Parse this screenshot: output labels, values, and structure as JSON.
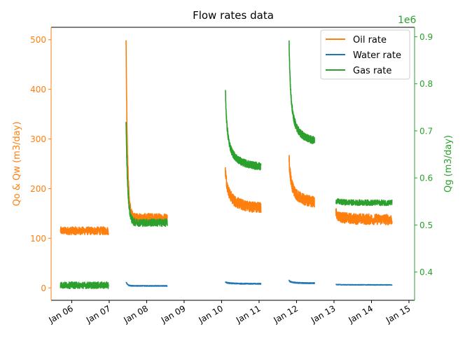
{
  "chart_data": {
    "type": "line",
    "title": "Flow rates data",
    "xlabel": "",
    "ylabel_left": "Qo & Qw (m3/day)",
    "ylabel_right": "Qg (m3/day)",
    "right_axis_offset": "1e6",
    "ylim_left": [
      -25,
      525
    ],
    "ylim_right": [
      0.34,
      0.92
    ],
    "xlim_days": [
      -0.55,
      9.15
    ],
    "x_ticks": [
      {
        "day": 0,
        "label": "Jan 06"
      },
      {
        "day": 1,
        "label": "Jan 07"
      },
      {
        "day": 2,
        "label": "Jan 08"
      },
      {
        "day": 3,
        "label": "Jan 09"
      },
      {
        "day": 4,
        "label": "Jan 10"
      },
      {
        "day": 5,
        "label": "Jan 11"
      },
      {
        "day": 6,
        "label": "Jan 12"
      },
      {
        "day": 7,
        "label": "Jan 13"
      },
      {
        "day": 8,
        "label": "Jan 14"
      },
      {
        "day": 9,
        "label": "Jan 15"
      }
    ],
    "y_ticks_left": [
      0,
      100,
      200,
      300,
      400,
      500
    ],
    "y_ticks_right": [
      0.4,
      0.5,
      0.6,
      0.7,
      0.8,
      0.9
    ],
    "colors": {
      "oil": "#ff7f0e",
      "water": "#1f77b4",
      "gas": "#2ca02c"
    },
    "legend": {
      "position": "top-right",
      "entries": [
        "Oil rate",
        "Water rate",
        "Gas rate"
      ]
    },
    "series": [
      {
        "name": "Oil rate",
        "axis": "left",
        "color": "#ff7f0e",
        "segments": [
          {
            "start": -0.3,
            "end": 0.98,
            "peak": 115,
            "base": 108,
            "decay": 0,
            "noise": 8
          },
          {
            "start": 1.45,
            "end": 2.55,
            "peak": 495,
            "base": 140,
            "decay": 25,
            "noise": 10
          },
          {
            "start": 4.1,
            "end": 5.05,
            "peak": 238,
            "base": 155,
            "decay": 0.45,
            "noise": 11
          },
          {
            "start": 5.8,
            "end": 6.48,
            "peak": 262,
            "base": 165,
            "decay": 0.35,
            "noise": 11
          },
          {
            "start": 7.05,
            "end": 8.55,
            "peak": 150,
            "base": 137,
            "decay": 0.6,
            "noise": 11
          }
        ]
      },
      {
        "name": "Water rate",
        "axis": "left",
        "color": "#1f77b4",
        "segments": [
          {
            "start": -0.3,
            "end": 0.98,
            "peak": 4,
            "base": 3,
            "decay": 0,
            "noise": 1.2
          },
          {
            "start": 1.45,
            "end": 2.55,
            "peak": 12,
            "base": 4,
            "decay": 25,
            "noise": 0.8
          },
          {
            "start": 4.1,
            "end": 5.05,
            "peak": 12,
            "base": 8,
            "decay": 0.4,
            "noise": 1
          },
          {
            "start": 5.8,
            "end": 6.48,
            "peak": 15,
            "base": 9,
            "decay": 0.3,
            "noise": 1
          },
          {
            "start": 7.05,
            "end": 8.55,
            "peak": 7,
            "base": 6,
            "decay": 0.5,
            "noise": 0.6
          }
        ]
      },
      {
        "name": "Gas rate",
        "axis": "right",
        "color": "#2ca02c",
        "segments": [
          {
            "start": -0.3,
            "end": 0.98,
            "peak": 0.372,
            "base": 0.368,
            "decay": 0,
            "noise": 0.007
          },
          {
            "start": 1.45,
            "end": 2.55,
            "peak": 0.715,
            "base": 0.505,
            "decay": 22,
            "noise": 0.008
          },
          {
            "start": 4.1,
            "end": 5.05,
            "peak": 0.79,
            "base": 0.615,
            "decay": 0.3,
            "noise": 0.008
          },
          {
            "start": 5.8,
            "end": 6.48,
            "peak": 0.9,
            "base": 0.665,
            "decay": 0.25,
            "noise": 0.008
          },
          {
            "start": 7.05,
            "end": 8.55,
            "peak": 0.552,
            "base": 0.547,
            "decay": 0.4,
            "noise": 0.006
          }
        ]
      }
    ]
  }
}
